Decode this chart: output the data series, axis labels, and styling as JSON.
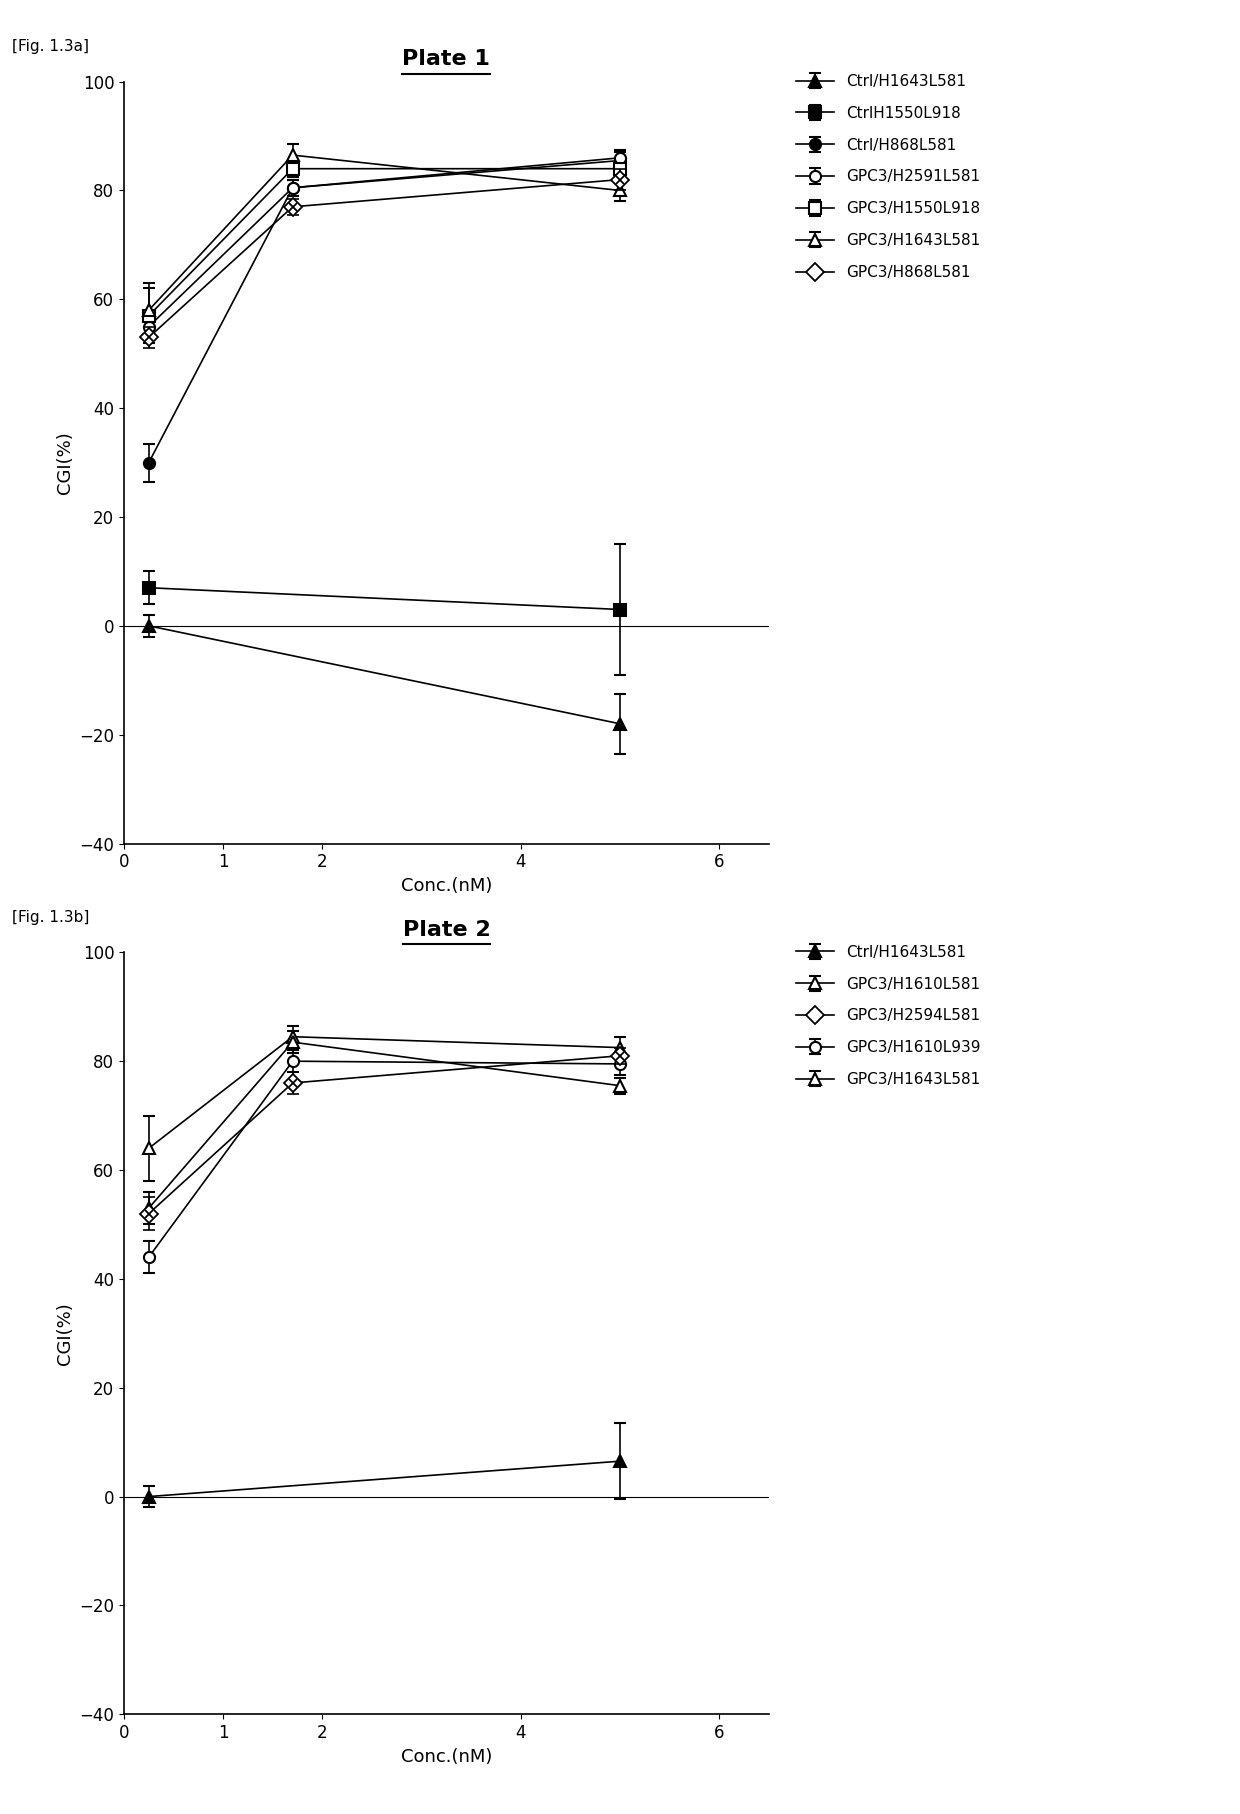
{
  "fig_label_a": "[Fig. 1.3a]",
  "fig_label_b": "[Fig. 1.3b]",
  "plate1": {
    "title": "Plate 1",
    "xlabel": "Conc.(nM)",
    "ylabel": "CGI(%)",
    "ylim": [
      -40,
      100
    ],
    "xlim": [
      0,
      6.5
    ],
    "xticks": [
      0,
      1,
      2,
      4,
      6
    ],
    "yticks": [
      -40,
      -20,
      0,
      20,
      40,
      60,
      80,
      100
    ],
    "series": [
      {
        "label": "Ctrl/H1643L581",
        "marker": "^",
        "fillstyle": "full",
        "color": "#000000",
        "linewidth": 1.2,
        "markersize": 8,
        "x": [
          0.25,
          5.0
        ],
        "y": [
          0.0,
          -18.0
        ],
        "yerr": [
          2.0,
          5.5
        ]
      },
      {
        "label": "CtrlH1550L918",
        "marker": "s",
        "fillstyle": "full",
        "color": "#000000",
        "linewidth": 1.2,
        "markersize": 8,
        "x": [
          0.25,
          5.0
        ],
        "y": [
          7.0,
          3.0
        ],
        "yerr": [
          3.0,
          12.0
        ]
      },
      {
        "label": "Ctrl/H868L581",
        "marker": "o",
        "fillstyle": "full",
        "color": "#000000",
        "linewidth": 1.2,
        "markersize": 8,
        "x": [
          0.25,
          1.7,
          5.0
        ],
        "y": [
          30.0,
          80.5,
          85.5
        ],
        "yerr": [
          3.5,
          1.5,
          1.5
        ]
      },
      {
        "label": "GPC3/H2591L581",
        "marker": "o",
        "fillstyle": "none",
        "color": "#000000",
        "linewidth": 1.2,
        "markersize": 8,
        "x": [
          0.25,
          1.7,
          5.0
        ],
        "y": [
          55.0,
          80.5,
          86.0
        ],
        "yerr": [
          2.0,
          1.5,
          1.5
        ]
      },
      {
        "label": "GPC3/H1550L918",
        "marker": "s",
        "fillstyle": "none",
        "color": "#000000",
        "linewidth": 1.2,
        "markersize": 8,
        "x": [
          0.25,
          1.7,
          5.0
        ],
        "y": [
          57.0,
          84.0,
          84.0
        ],
        "yerr": [
          5.0,
          1.5,
          2.0
        ]
      },
      {
        "label": "GPC3/H1643L581",
        "marker": "^",
        "fillstyle": "none",
        "color": "#000000",
        "linewidth": 1.2,
        "markersize": 8,
        "x": [
          0.25,
          1.7,
          5.0
        ],
        "y": [
          58.0,
          86.5,
          80.0
        ],
        "yerr": [
          5.0,
          2.0,
          2.0
        ]
      },
      {
        "label": "GPC3/H868L581",
        "marker": "x_diamond",
        "fillstyle": "none",
        "color": "#000000",
        "linewidth": 1.2,
        "markersize": 9,
        "x": [
          0.25,
          1.7,
          5.0
        ],
        "y": [
          53.0,
          77.0,
          82.0
        ],
        "yerr": [
          2.0,
          1.5,
          2.0
        ]
      }
    ]
  },
  "plate2": {
    "title": "Plate 2",
    "xlabel": "Conc.(nM)",
    "ylabel": "CGI(%)",
    "ylim": [
      -40,
      100
    ],
    "xlim": [
      0,
      6.5
    ],
    "xticks": [
      0,
      1,
      2,
      4,
      6
    ],
    "yticks": [
      -40,
      -20,
      0,
      20,
      40,
      60,
      80,
      100
    ],
    "series": [
      {
        "label": "Ctrl/H1643L581",
        "marker": "^",
        "fillstyle": "full",
        "color": "#000000",
        "linewidth": 1.2,
        "markersize": 8,
        "x": [
          0.25,
          5.0
        ],
        "y": [
          0.0,
          6.5
        ],
        "yerr": [
          2.0,
          7.0
        ]
      },
      {
        "label": "GPC3/H1610L581",
        "marker": "^",
        "fillstyle": "none",
        "color": "#000000",
        "linewidth": 1.2,
        "markersize": 8,
        "x": [
          0.25,
          1.7,
          5.0
        ],
        "y": [
          64.0,
          84.5,
          82.5
        ],
        "yerr": [
          6.0,
          2.0,
          2.0
        ]
      },
      {
        "label": "GPC3/H2594L581",
        "marker": "x_diamond",
        "fillstyle": "none",
        "color": "#000000",
        "linewidth": 1.2,
        "markersize": 9,
        "x": [
          0.25,
          1.7,
          5.0
        ],
        "y": [
          52.0,
          76.0,
          81.0
        ],
        "yerr": [
          3.0,
          2.0,
          1.5
        ]
      },
      {
        "label": "GPC3/H1610L939",
        "marker": "o",
        "fillstyle": "none",
        "color": "#000000",
        "linewidth": 1.2,
        "markersize": 8,
        "x": [
          0.25,
          1.7,
          5.0
        ],
        "y": [
          44.0,
          80.0,
          79.5
        ],
        "yerr": [
          3.0,
          2.0,
          2.0
        ]
      },
      {
        "label": "GPC3/H1643L581",
        "marker": "^",
        "fillstyle": "none",
        "color": "#000000",
        "linewidth": 1.2,
        "markersize": 8,
        "x": [
          0.25,
          1.7,
          5.0
        ],
        "y": [
          53.0,
          83.5,
          75.5
        ],
        "yerr": [
          3.0,
          2.0,
          1.5
        ]
      }
    ]
  }
}
